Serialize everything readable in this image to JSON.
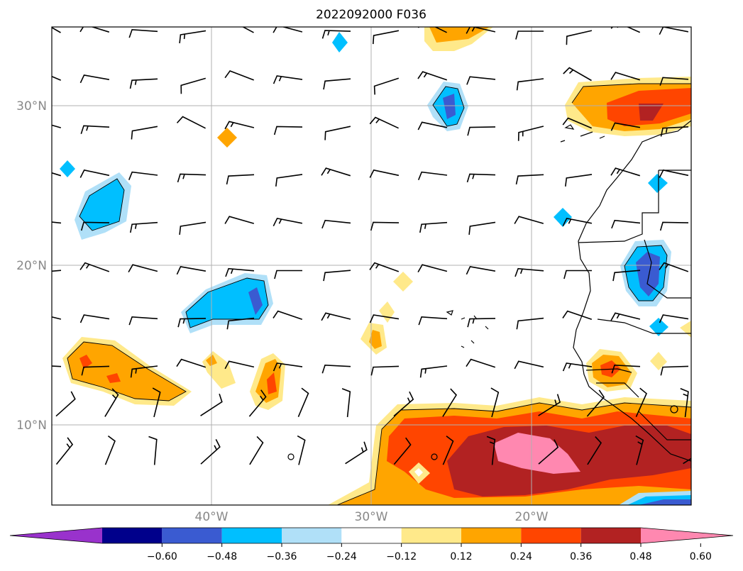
{
  "title": "2022092000 F036",
  "map": {
    "lat_labels": [
      "30°N",
      "20°N",
      "10°N"
    ],
    "lon_labels": [
      "40°W",
      "30°W",
      "20°W"
    ],
    "gridline_color": "#b0b0b0",
    "coastline_color": "#000000",
    "wind_barb_color": "#000000"
  },
  "colorbar": {
    "ticks": [
      "−0.60",
      "−0.48",
      "−0.36",
      "−0.24",
      "−0.12",
      "0.12",
      "0.24",
      "0.36",
      "0.48",
      "0.60"
    ],
    "colors": [
      "#9932cc",
      "#00008b",
      "#3a5bd1",
      "#00bfff",
      "#b0e0f8",
      "#ffffff",
      "#ffe98a",
      "#ffa500",
      "#ff4500",
      "#b22222",
      "#ff88b0"
    ],
    "extend": "both"
  }
}
